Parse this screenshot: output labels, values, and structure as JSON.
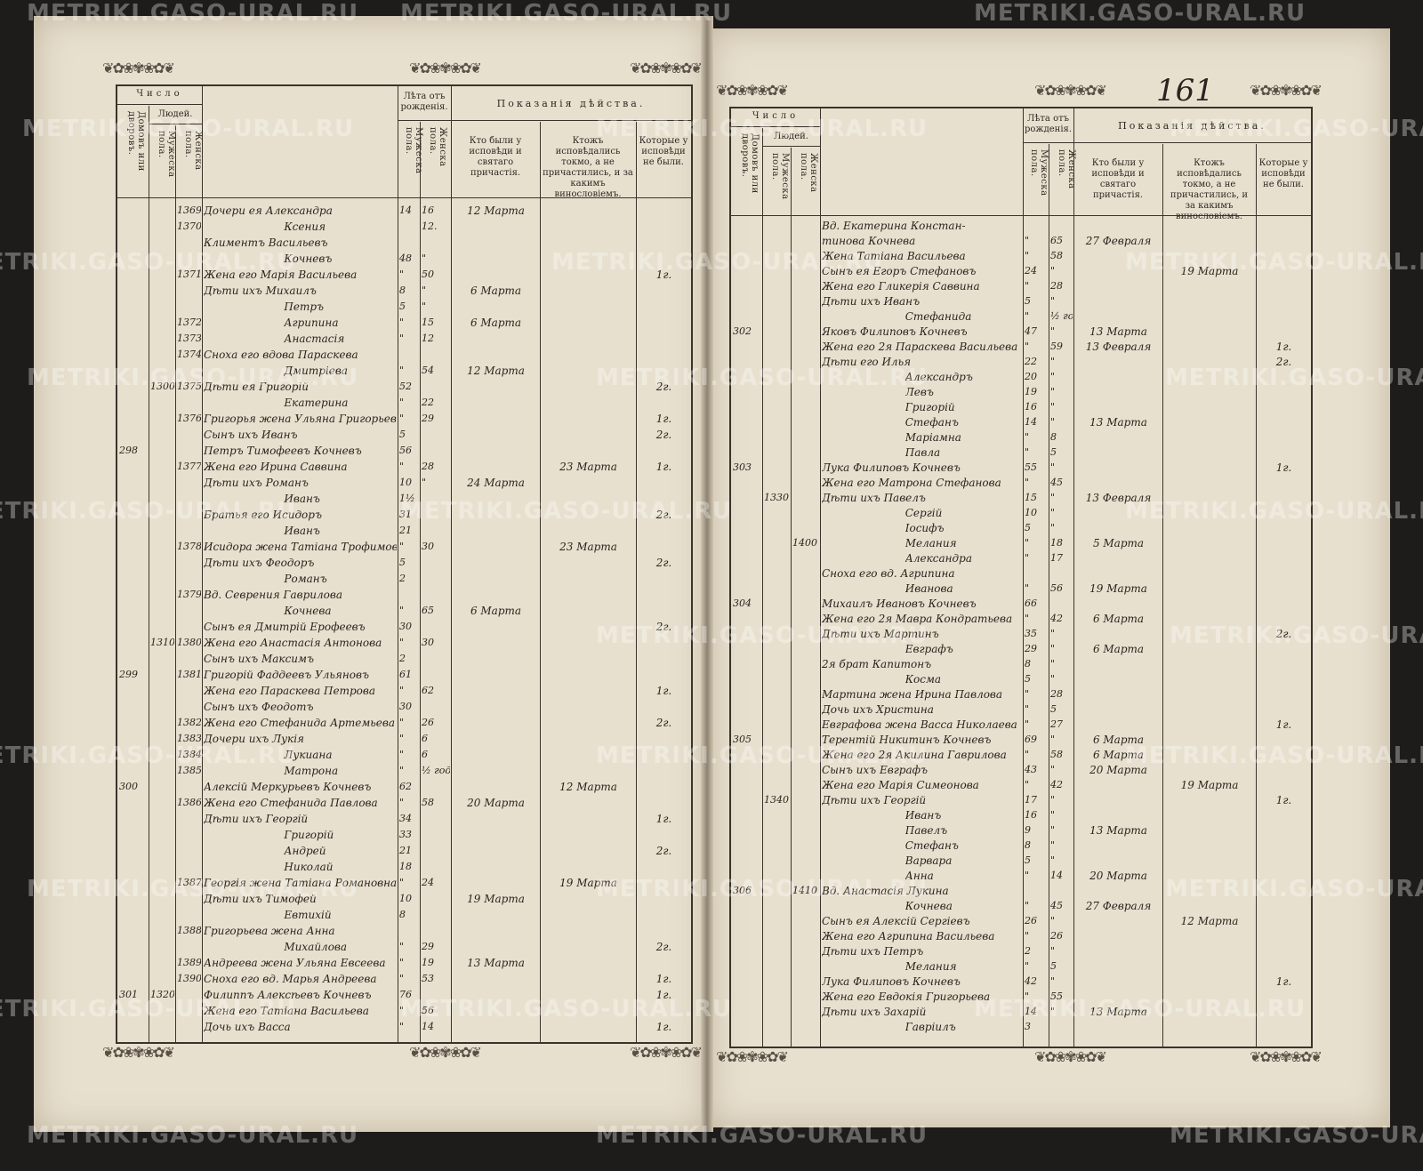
{
  "watermark": "METRIKI.GASO-URAL.RU",
  "page_number": "161",
  "header": {
    "chislo": "Число",
    "lyudey": "Людей.",
    "domov": "Домовъ или дворовъ.",
    "muzh": "Мужеска пола.",
    "zhen": "Женска пола.",
    "leta": "Лѣта отъ рожденія.",
    "leta_m": "Мужеска пола.",
    "leta_f": "Женска пола.",
    "pokazania": "Показанія дѣйства.",
    "col1": "Кто были у исповѣди и святаго причастія.",
    "col2": "Ктожъ исповѣдались токмо, а не причастились, и за какимъ винословіемъ.",
    "col3": "Которые у исповѣди не были."
  },
  "left_rows": [
    [
      "",
      "",
      "1369",
      "Дочери ея Александра",
      "14",
      "16",
      "12 Марта",
      "",
      ""
    ],
    [
      "",
      "",
      "1370",
      "Ксения",
      "",
      "12.",
      "",
      "",
      ""
    ],
    [
      "",
      "",
      "",
      "Климентъ Васильевъ",
      "",
      "",
      "",
      "",
      ""
    ],
    [
      "",
      "",
      "",
      "Кочневъ",
      "48",
      "\"",
      "",
      "",
      ""
    ],
    [
      "",
      "",
      "1371",
      "Жена его Марія Васильева",
      "\"",
      "50",
      "",
      "",
      "1г."
    ],
    [
      "",
      "",
      "",
      "Дѣти ихъ Михаилъ",
      "8",
      "\"",
      "6 Марта",
      "",
      ""
    ],
    [
      "",
      "",
      "",
      "Петръ",
      "5",
      "\"",
      "",
      "",
      ""
    ],
    [
      "",
      "",
      "1372",
      "Агрипина",
      "\"",
      "15",
      "6 Марта",
      "",
      ""
    ],
    [
      "",
      "",
      "1373",
      "Анастасія",
      "\"",
      "12",
      "",
      "",
      ""
    ],
    [
      "",
      "",
      "1374",
      "Сноха его вдова Параскева",
      "",
      "",
      "",
      "",
      ""
    ],
    [
      "",
      "",
      "",
      "Дмитріева",
      "\"",
      "54",
      "12 Марта",
      "",
      ""
    ],
    [
      "",
      "1300",
      "1375",
      "Дѣти ея Григорій",
      "52",
      "",
      "",
      "",
      "2г."
    ],
    [
      "",
      "",
      "",
      "Екатерина",
      "\"",
      "22",
      "",
      "",
      ""
    ],
    [
      "",
      "",
      "1376",
      "Григорья жена Ульяна Григорьевна",
      "\"",
      "29",
      "",
      "",
      "1г."
    ],
    [
      "",
      "",
      "",
      "Сынъ ихъ Иванъ",
      "5",
      "",
      "",
      "",
      "2г."
    ],
    [
      "298",
      "",
      "",
      "Петръ Тимофеевъ Кочневъ",
      "56",
      "",
      "",
      "",
      ""
    ],
    [
      "",
      "",
      "1377",
      "Жена его Ирина Саввина",
      "\"",
      "28",
      "",
      "23 Марта",
      "1г."
    ],
    [
      "",
      "",
      "",
      "Дѣти ихъ Романъ",
      "10",
      "\"",
      "24 Марта",
      "",
      ""
    ],
    [
      "",
      "",
      "",
      "Иванъ",
      "1½",
      "",
      "",
      "",
      ""
    ],
    [
      "",
      "",
      "",
      "Братья его Исидоръ",
      "31",
      "",
      "",
      "",
      "2г."
    ],
    [
      "",
      "",
      "",
      "Иванъ",
      "21",
      "",
      "",
      "",
      ""
    ],
    [
      "",
      "",
      "1378",
      "Исидора жена Татіана Трофимовна",
      "\"",
      "30",
      "",
      "23 Марта",
      ""
    ],
    [
      "",
      "",
      "",
      "Дѣти ихъ Феодоръ",
      "5",
      "",
      "",
      "",
      "2г."
    ],
    [
      "",
      "",
      "",
      "Романъ",
      "2",
      "",
      "",
      "",
      ""
    ],
    [
      "",
      "",
      "1379",
      "Вд. Севрения Гаврилова",
      "",
      "",
      "",
      "",
      ""
    ],
    [
      "",
      "",
      "",
      "Кочнева",
      "\"",
      "65",
      "6 Марта",
      "",
      ""
    ],
    [
      "",
      "",
      "",
      "Сынъ ея Дмитрій Ерофеевъ",
      "30",
      "",
      "",
      "",
      "2г."
    ],
    [
      "",
      "1310",
      "1380",
      "Жена его Анастасія Антонова",
      "\"",
      "30",
      "",
      "",
      ""
    ],
    [
      "",
      "",
      "",
      "Сынъ ихъ Максимъ",
      "2",
      "",
      "",
      "",
      ""
    ],
    [
      "299",
      "",
      "1381",
      "Григорій Фаддеевъ Ульяновъ",
      "61",
      "",
      "",
      "",
      ""
    ],
    [
      "",
      "",
      "",
      "Жена его Параскева Петрова",
      "\"",
      "62",
      "",
      "",
      "1г."
    ],
    [
      "",
      "",
      "",
      "Сынъ ихъ Феодотъ",
      "30",
      "",
      "",
      "",
      ""
    ],
    [
      "",
      "",
      "1382",
      "Жена его Стефанида Артемьева",
      "\"",
      "26",
      "",
      "",
      "2г."
    ],
    [
      "",
      "",
      "1383",
      "Дочери ихъ Лукія",
      "\"",
      "6",
      "",
      "",
      ""
    ],
    [
      "",
      "",
      "1384",
      "Лукиана",
      "\"",
      "6",
      "",
      "",
      ""
    ],
    [
      "",
      "",
      "1385",
      "Матрона",
      "\"",
      "½ года",
      "",
      "",
      ""
    ],
    [
      "300",
      "",
      "",
      "Алексій Меркурьевъ Кочневъ",
      "62",
      "",
      "",
      "12 Марта",
      ""
    ],
    [
      "",
      "",
      "1386",
      "Жена его Стефанида Павлова",
      "\"",
      "58",
      "20 Марта",
      "",
      ""
    ],
    [
      "",
      "",
      "",
      "Дѣти ихъ Георгій",
      "34",
      "",
      "",
      "",
      "1г."
    ],
    [
      "",
      "",
      "",
      "Григорій",
      "33",
      "",
      "",
      "",
      ""
    ],
    [
      "",
      "",
      "",
      "Андрей",
      "21",
      "",
      "",
      "",
      "2г."
    ],
    [
      "",
      "",
      "",
      "Николай",
      "18",
      "",
      "",
      "",
      ""
    ],
    [
      "",
      "",
      "1387",
      "Георгія жена Татіана Романовна",
      "\"",
      "24",
      "",
      "19 Марта",
      ""
    ],
    [
      "",
      "",
      "",
      "Дѣти ихъ Тимофей",
      "10",
      "",
      "19 Марта",
      "",
      ""
    ],
    [
      "",
      "",
      "",
      "Евтихій",
      "8",
      "",
      "",
      "",
      ""
    ],
    [
      "",
      "",
      "1388",
      "Григорьева жена Анна",
      "",
      "",
      "",
      "",
      ""
    ],
    [
      "",
      "",
      "",
      "Михайлова",
      "\"",
      "29",
      "",
      "",
      "2г."
    ],
    [
      "",
      "",
      "1389",
      "Андреева жена Ульяна Евсеева",
      "\"",
      "19",
      "13 Марта",
      "",
      ""
    ],
    [
      "",
      "",
      "1390",
      "Сноха его вд. Марья Андреева",
      "\"",
      "53",
      "",
      "",
      "1г."
    ],
    [
      "301",
      "1320",
      "",
      "Филиппъ Алексѣевъ Кочневъ",
      "76",
      "",
      "",
      "",
      "1г."
    ],
    [
      "",
      "",
      "",
      "Жена его Татіана Васильева",
      "\"",
      "56",
      "",
      "",
      ""
    ],
    [
      "",
      "",
      "",
      "Дочь ихъ Васса",
      "\"",
      "14",
      "",
      "",
      "1г."
    ]
  ],
  "right_rows": [
    [
      "",
      "",
      "",
      "Вд. Екатерина Констан-",
      "",
      "",
      "",
      "",
      ""
    ],
    [
      "",
      "",
      "",
      "тинова Кочнева",
      "\"",
      "65",
      "27 Февраля",
      "",
      ""
    ],
    [
      "",
      "",
      "",
      "Жена Татіана Васильева",
      "\"",
      "58",
      "",
      "",
      ""
    ],
    [
      "",
      "",
      "",
      "Сынъ ея Егоръ Стефановъ",
      "24",
      "\"",
      "",
      "19 Марта",
      ""
    ],
    [
      "",
      "",
      "",
      "Жена его Гликерія Саввина",
      "\"",
      "28",
      "",
      "",
      ""
    ],
    [
      "",
      "",
      "",
      "Дѣти ихъ Иванъ",
      "5",
      "\"",
      "",
      "",
      ""
    ],
    [
      "",
      "",
      "",
      "Стефанида",
      "\"",
      "½ года",
      "",
      "",
      ""
    ],
    [
      "302",
      "",
      "",
      "Яковъ Филиповъ Кочневъ",
      "47",
      "\"",
      "13 Марта",
      "",
      ""
    ],
    [
      "",
      "",
      "",
      "Жена его 2я Параскева Васильева",
      "\"",
      "59",
      "13 Февраля",
      "",
      "1г."
    ],
    [
      "",
      "",
      "",
      "Дѣти его Илья",
      "22",
      "\"",
      "",
      "",
      "2г."
    ],
    [
      "",
      "",
      "",
      "Александръ",
      "20",
      "\"",
      "",
      "",
      ""
    ],
    [
      "",
      "",
      "",
      "Левъ",
      "19",
      "\"",
      "",
      "",
      ""
    ],
    [
      "",
      "",
      "",
      "Григорій",
      "16",
      "\"",
      "",
      "",
      ""
    ],
    [
      "",
      "",
      "",
      "Стефанъ",
      "14",
      "\"",
      "13 Марта",
      "",
      ""
    ],
    [
      "",
      "",
      "",
      "Маріамна",
      "\"",
      "8",
      "",
      "",
      ""
    ],
    [
      "",
      "",
      "",
      "Павла",
      "\"",
      "5",
      "",
      "",
      ""
    ],
    [
      "303",
      "",
      "",
      "Лука Филиповъ Кочневъ",
      "55",
      "\"",
      "",
      "",
      "1г."
    ],
    [
      "",
      "",
      "",
      "Жена его Матрона Стефанова",
      "\"",
      "45",
      "",
      "",
      ""
    ],
    [
      "",
      "1330",
      "",
      "Дѣти ихъ Павелъ",
      "15",
      "\"",
      "13 Февраля",
      "",
      ""
    ],
    [
      "",
      "",
      "",
      "Сергій",
      "10",
      "\"",
      "",
      "",
      ""
    ],
    [
      "",
      "",
      "",
      "Іосифъ",
      "5",
      "\"",
      "",
      "",
      ""
    ],
    [
      "",
      "",
      "1400",
      "Мелания",
      "\"",
      "18",
      "5 Марта",
      "",
      ""
    ],
    [
      "",
      "",
      "",
      "Александра",
      "\"",
      "17",
      "",
      "",
      ""
    ],
    [
      "",
      "",
      "",
      "Сноха его вд. Агрипина",
      "",
      "",
      "",
      "",
      ""
    ],
    [
      "",
      "",
      "",
      "Иванова",
      "\"",
      "56",
      "19 Марта",
      "",
      ""
    ],
    [
      "304",
      "",
      "",
      "Михаилъ Ивановъ Кочневъ",
      "66",
      "",
      "",
      "",
      ""
    ],
    [
      "",
      "",
      "",
      "Жена его 2я Мавра Кондратьева",
      "\"",
      "42",
      "6 Марта",
      "",
      ""
    ],
    [
      "",
      "",
      "",
      "Дѣти ихъ Мартинъ",
      "35",
      "\"",
      "",
      "",
      "2г."
    ],
    [
      "",
      "",
      "",
      "Евграфъ",
      "29",
      "\"",
      "6 Марта",
      "",
      ""
    ],
    [
      "",
      "",
      "",
      "2я брат Капитонъ",
      "8",
      "\"",
      "",
      "",
      ""
    ],
    [
      "",
      "",
      "",
      "Косма",
      "5",
      "\"",
      "",
      "",
      ""
    ],
    [
      "",
      "",
      "",
      "Мартина жена Ирина Павлова",
      "\"",
      "28",
      "",
      "",
      ""
    ],
    [
      "",
      "",
      "",
      "Дочь ихъ Христина",
      "\"",
      "5",
      "",
      "",
      ""
    ],
    [
      "",
      "",
      "",
      "Евграфова жена Васса Николаева",
      "\"",
      "27",
      "",
      "",
      "1г."
    ],
    [
      "305",
      "",
      "",
      "Терентій Никитинъ Кочневъ",
      "69",
      "\"",
      "6 Марта",
      "",
      ""
    ],
    [
      "",
      "",
      "",
      "Жена его 2я Акилина Гаврилова",
      "\"",
      "58",
      "6 Марта",
      "",
      ""
    ],
    [
      "",
      "",
      "",
      "Сынъ ихъ Евграфъ",
      "43",
      "\"",
      "20 Марта",
      "",
      ""
    ],
    [
      "",
      "",
      "",
      "Жена его Марія Симеонова",
      "\"",
      "42",
      "",
      "19 Марта",
      ""
    ],
    [
      "",
      "1340",
      "",
      "Дѣти ихъ Георгій",
      "17",
      "\"",
      "",
      "",
      "1г."
    ],
    [
      "",
      "",
      "",
      "Иванъ",
      "16",
      "\"",
      "",
      "",
      ""
    ],
    [
      "",
      "",
      "",
      "Павелъ",
      "9",
      "\"",
      "13 Марта",
      "",
      ""
    ],
    [
      "",
      "",
      "",
      "Стефанъ",
      "8",
      "\"",
      "",
      "",
      ""
    ],
    [
      "",
      "",
      "",
      "Варвара",
      "5",
      "\"",
      "",
      "",
      ""
    ],
    [
      "",
      "",
      "",
      "Анна",
      "\"",
      "14",
      "20 Марта",
      "",
      ""
    ],
    [
      "306",
      "",
      "1410",
      "Вд. Анастасія Лукина",
      "",
      "",
      "",
      "",
      ""
    ],
    [
      "",
      "",
      "",
      "Кочнева",
      "\"",
      "45",
      "27 Февраля",
      "",
      ""
    ],
    [
      "",
      "",
      "",
      "Сынъ ея Алексій Сергіевъ",
      "26",
      "\"",
      "",
      "12 Марта",
      ""
    ],
    [
      "",
      "",
      "",
      "Жена его Агрипина Васильева",
      "\"",
      "26",
      "",
      "",
      ""
    ],
    [
      "",
      "",
      "",
      "Дѣти ихъ Петръ",
      "2",
      "\"",
      "",
      "",
      ""
    ],
    [
      "",
      "",
      "",
      "Мелания",
      "\"",
      "5",
      "",
      "",
      ""
    ],
    [
      "",
      "",
      "",
      "Лука Филиповъ Кочневъ",
      "42",
      "\"",
      "",
      "",
      "1г."
    ],
    [
      "",
      "",
      "",
      "Жена его Евдокія Григорьева",
      "\"",
      "55",
      "",
      "",
      ""
    ],
    [
      "",
      "",
      "",
      "Дѣти ихъ Захарій",
      "14",
      "\"",
      "13 Марта",
      "",
      ""
    ],
    [
      "",
      "",
      "",
      "Гавріилъ",
      "3",
      "",
      "",
      "",
      ""
    ]
  ]
}
